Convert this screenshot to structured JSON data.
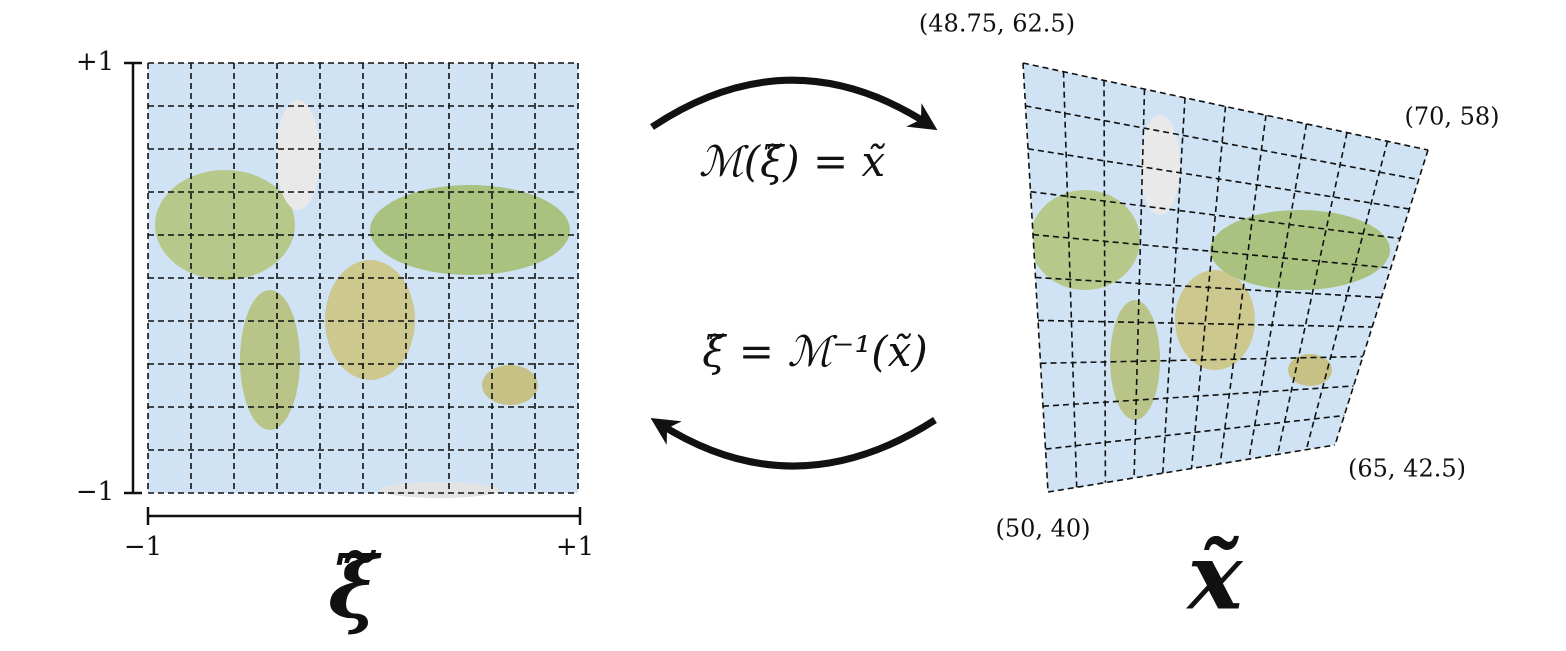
{
  "left_panel": {
    "y_axis": {
      "top_label": "+1",
      "bottom_label": "−1"
    },
    "x_axis": {
      "left_label": "−1",
      "right_label": "+1"
    },
    "symbol": "ξ̃"
  },
  "mapping": {
    "forward": "ℳ(ξ̃) = x̃",
    "inverse": "ξ̃ = ℳ⁻¹(x̃)"
  },
  "right_panel": {
    "corners": {
      "top_left": "(48.75, 62.5)",
      "top_right": "(70, 58)",
      "bottom_right": "(65, 42.5)",
      "bottom_left": "(50, 40)"
    },
    "symbol": "x̃"
  }
}
